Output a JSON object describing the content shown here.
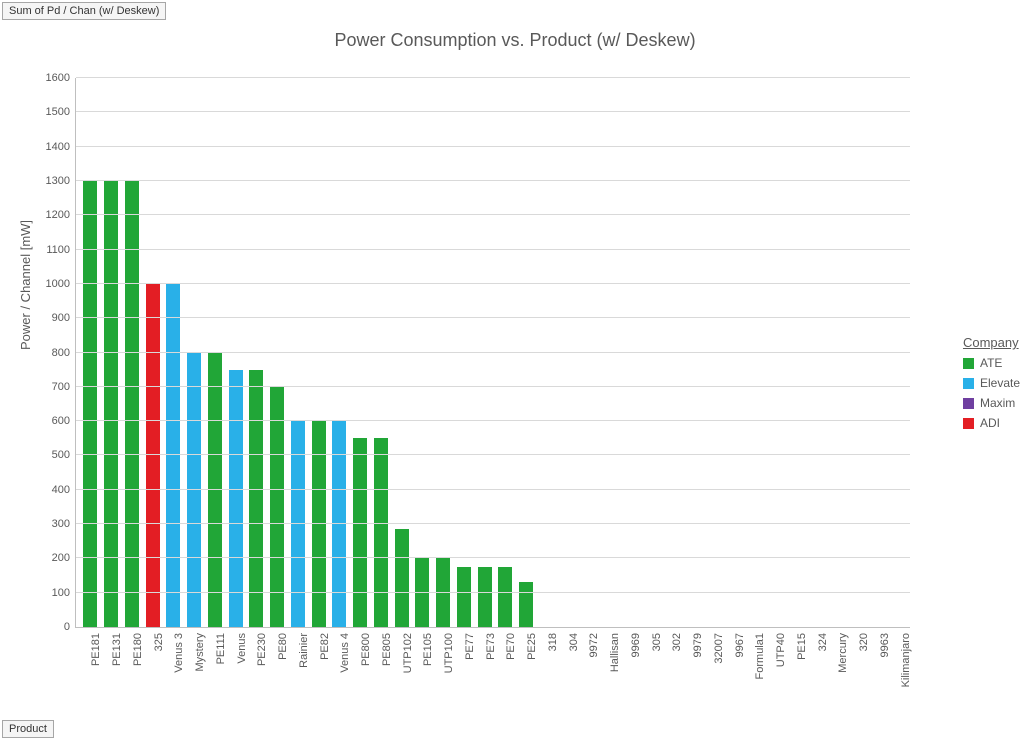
{
  "field_button_top": "Sum of Pd / Chan (w/ Deskew)",
  "field_button_bottom": "Product",
  "chart": {
    "type": "bar",
    "title": "Power Consumption vs. Product (w/ Deskew)",
    "title_fontsize": 18,
    "title_color": "#595959",
    "ylabel": "Power / Channel [mW]",
    "label_fontsize": 13,
    "label_color": "#595959",
    "tick_fontsize": 11,
    "tick_color": "#595959",
    "background_color": "#ffffff",
    "grid_color": "#d9d9d9",
    "axis_color": "#bfbfbf",
    "ylim": [
      0,
      1600
    ],
    "ytick_step": 100,
    "bar_width": 0.68,
    "colors": {
      "ATE": "#21a637",
      "Elevate": "#29b0e8",
      "Maxim": "#6f3fa0",
      "ADI": "#e31e24"
    },
    "legend": {
      "title": "Company",
      "items": [
        {
          "label": "ATE",
          "color": "#21a637"
        },
        {
          "label": "Elevate",
          "color": "#29b0e8"
        },
        {
          "label": "Maxim",
          "color": "#6f3fa0"
        },
        {
          "label": "ADI",
          "color": "#e31e24"
        }
      ]
    },
    "data": [
      {
        "product": "PE181",
        "value": 1300,
        "company": "ATE"
      },
      {
        "product": "PE131",
        "value": 1300,
        "company": "ATE"
      },
      {
        "product": "PE180",
        "value": 1300,
        "company": "ATE"
      },
      {
        "product": "325",
        "value": 1000,
        "company": "ADI"
      },
      {
        "product": "Venus 3",
        "value": 1000,
        "company": "Elevate"
      },
      {
        "product": "Mystery",
        "value": 800,
        "company": "Elevate"
      },
      {
        "product": "PE111",
        "value": 800,
        "company": "ATE"
      },
      {
        "product": "Venus",
        "value": 750,
        "company": "Elevate"
      },
      {
        "product": "PE230",
        "value": 750,
        "company": "ATE"
      },
      {
        "product": "PE80",
        "value": 700,
        "company": "ATE"
      },
      {
        "product": "Rainier",
        "value": 600,
        "company": "Elevate"
      },
      {
        "product": "PE82",
        "value": 600,
        "company": "ATE"
      },
      {
        "product": "Venus 4",
        "value": 600,
        "company": "Elevate"
      },
      {
        "product": "PE800",
        "value": 550,
        "company": "ATE"
      },
      {
        "product": "PE805",
        "value": 550,
        "company": "ATE"
      },
      {
        "product": "UTP102",
        "value": 285,
        "company": "ATE"
      },
      {
        "product": "PE105",
        "value": 200,
        "company": "ATE"
      },
      {
        "product": "UTP100",
        "value": 200,
        "company": "ATE"
      },
      {
        "product": "PE77",
        "value": 175,
        "company": "ATE"
      },
      {
        "product": "PE73",
        "value": 175,
        "company": "ATE"
      },
      {
        "product": "PE70",
        "value": 175,
        "company": "ATE"
      },
      {
        "product": "PE25",
        "value": 130,
        "company": "ATE"
      },
      {
        "product": "318",
        "value": 0,
        "company": "ADI"
      },
      {
        "product": "304",
        "value": 0,
        "company": "ADI"
      },
      {
        "product": "9972",
        "value": 0,
        "company": "Maxim"
      },
      {
        "product": "Hallisan",
        "value": 0,
        "company": "Elevate"
      },
      {
        "product": "9969",
        "value": 0,
        "company": "Maxim"
      },
      {
        "product": "305",
        "value": 0,
        "company": "ADI"
      },
      {
        "product": "302",
        "value": 0,
        "company": "ADI"
      },
      {
        "product": "9979",
        "value": 0,
        "company": "Maxim"
      },
      {
        "product": "32007",
        "value": 0,
        "company": "Maxim"
      },
      {
        "product": "9967",
        "value": 0,
        "company": "Maxim"
      },
      {
        "product": "Formula1",
        "value": 0,
        "company": "Elevate"
      },
      {
        "product": "UTP40",
        "value": 0,
        "company": "ATE"
      },
      {
        "product": "PE15",
        "value": 0,
        "company": "ATE"
      },
      {
        "product": "324",
        "value": 0,
        "company": "ADI"
      },
      {
        "product": "Mercury",
        "value": 0,
        "company": "Elevate"
      },
      {
        "product": "320",
        "value": 0,
        "company": "ADI"
      },
      {
        "product": "9963",
        "value": 0,
        "company": "Maxim"
      },
      {
        "product": "Kilimanjaro",
        "value": 0,
        "company": "Elevate"
      }
    ]
  }
}
